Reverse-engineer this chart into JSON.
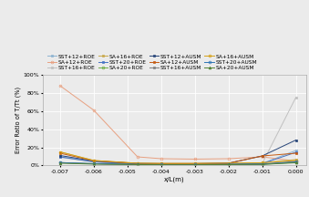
{
  "x": [
    -0.007,
    -0.006,
    -0.0047,
    -0.004,
    -0.003,
    -0.002,
    -0.001,
    0.0
  ],
  "series": [
    {
      "label": "SST+12+ROE",
      "color": "#8db3d1",
      "marker": "s",
      "markersize": 2.0,
      "linewidth": 0.7,
      "linestyle": "-",
      "markerfill": "face",
      "values": [
        9.5,
        4.2,
        2.0,
        1.8,
        1.8,
        2.0,
        2.2,
        16.5
      ]
    },
    {
      "label": "SA+12+ROE",
      "color": "#e8a080",
      "marker": "o",
      "markersize": 2.0,
      "linewidth": 0.7,
      "linestyle": "-",
      "markerfill": "none",
      "values": [
        88.0,
        61.0,
        9.5,
        7.5,
        7.0,
        7.5,
        9.5,
        5.0
      ]
    },
    {
      "label": "SST+16+ROE",
      "color": "#c0c0c0",
      "marker": "s",
      "markersize": 2.0,
      "linewidth": 0.7,
      "linestyle": "-",
      "markerfill": "face",
      "values": [
        9.0,
        4.0,
        1.8,
        1.6,
        1.6,
        1.8,
        2.0,
        75.0
      ]
    },
    {
      "label": "SA+16+ROE",
      "color": "#c8a84b",
      "marker": "s",
      "markersize": 2.0,
      "linewidth": 0.7,
      "linestyle": "-",
      "markerfill": "face",
      "values": [
        15.0,
        5.5,
        2.5,
        2.3,
        2.3,
        2.5,
        3.0,
        6.5
      ]
    },
    {
      "label": "SST+20+ROE",
      "color": "#4472c4",
      "marker": "s",
      "markersize": 2.0,
      "linewidth": 0.7,
      "linestyle": "-",
      "markerfill": "face",
      "values": [
        9.5,
        4.0,
        1.5,
        1.5,
        1.5,
        1.7,
        2.0,
        14.5
      ]
    },
    {
      "label": "SA+20+ROE",
      "color": "#70ad47",
      "marker": "o",
      "markersize": 2.0,
      "linewidth": 0.7,
      "linestyle": "-",
      "markerfill": "none",
      "values": [
        3.0,
        2.0,
        1.0,
        1.0,
        1.0,
        1.0,
        1.2,
        3.5
      ]
    },
    {
      "label": "SST+12+AUSM",
      "color": "#264478",
      "marker": "s",
      "markersize": 2.0,
      "linewidth": 0.7,
      "linestyle": "-",
      "markerfill": "face",
      "values": [
        11.0,
        5.0,
        2.2,
        2.0,
        2.0,
        2.5,
        10.5,
        28.0
      ]
    },
    {
      "label": "SA+12+AUSM",
      "color": "#c55a11",
      "marker": "s",
      "markersize": 2.0,
      "linewidth": 0.7,
      "linestyle": "-",
      "markerfill": "face",
      "values": [
        13.5,
        5.2,
        2.2,
        2.0,
        2.0,
        2.5,
        10.5,
        13.5
      ]
    },
    {
      "label": "SST+16+AUSM",
      "color": "#808080",
      "marker": "s",
      "markersize": 2.0,
      "linewidth": 0.7,
      "linestyle": "-",
      "markerfill": "face",
      "values": [
        3.2,
        1.8,
        1.0,
        1.0,
        1.0,
        1.0,
        1.5,
        4.5
      ]
    },
    {
      "label": "SA+16+AUSM",
      "color": "#d4a017",
      "marker": "o",
      "markersize": 2.0,
      "linewidth": 0.7,
      "linestyle": "-",
      "markerfill": "none",
      "values": [
        15.0,
        5.5,
        2.5,
        2.3,
        2.3,
        2.5,
        3.0,
        5.5
      ]
    },
    {
      "label": "SST+20+AUSM",
      "color": "#2e75b6",
      "marker": "o",
      "markersize": 2.0,
      "linewidth": 0.7,
      "linestyle": "-",
      "markerfill": "none",
      "values": [
        3.2,
        2.0,
        1.2,
        1.0,
        1.0,
        1.2,
        1.5,
        4.0
      ]
    },
    {
      "label": "SA+20+AUSM",
      "color": "#548235",
      "marker": "^",
      "markersize": 2.0,
      "linewidth": 0.7,
      "linestyle": "-",
      "markerfill": "face",
      "values": [
        2.5,
        1.5,
        1.0,
        0.8,
        0.8,
        1.0,
        1.2,
        3.0
      ]
    }
  ],
  "xlabel": "x/L(m)",
  "ylabel": "Error Ratio of T/Tt (%)",
  "xlim": [
    -0.0075,
    0.0003
  ],
  "ylim": [
    0,
    100
  ],
  "yticks": [
    0,
    20,
    40,
    60,
    80,
    100
  ],
  "ytick_labels": [
    "0%",
    "20%",
    "40%",
    "60%",
    "80%",
    "100%"
  ],
  "xticks": [
    -0.007,
    -0.006,
    -0.005,
    -0.004,
    -0.003,
    -0.002,
    -0.001,
    0.0
  ],
  "background_color": "#ebebeb",
  "grid_color": "#ffffff",
  "legend_ncol": 4,
  "legend_fontsize": 4.2,
  "tick_fontsize": 4.5,
  "xlabel_fontsize": 5.0,
  "ylabel_fontsize": 4.8
}
